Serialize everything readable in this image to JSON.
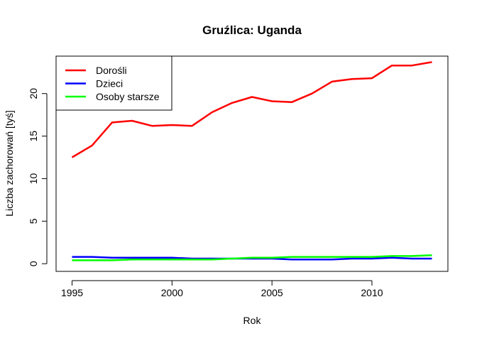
{
  "chart_data": {
    "type": "line",
    "title": "Gruźlica: Uganda",
    "xlabel": "Rok",
    "ylabel": "Liczba zachorowań [tyś]",
    "xlim": [
      1994.2,
      2013.8
    ],
    "ylim": [
      -0.9,
      24.4
    ],
    "xticks": [
      1995,
      2000,
      2005,
      2010
    ],
    "yticks": [
      0,
      5,
      10,
      15,
      20
    ],
    "grid": false,
    "legend_position": "top-left",
    "x": [
      1995,
      1996,
      1997,
      1998,
      1999,
      2000,
      2001,
      2002,
      2003,
      2004,
      2005,
      2006,
      2007,
      2008,
      2009,
      2010,
      2011,
      2012,
      2013
    ],
    "series": [
      {
        "name": "Dorośli",
        "color": "#ff0000",
        "values": [
          12.5,
          13.9,
          16.6,
          16.8,
          16.2,
          16.3,
          16.2,
          17.8,
          18.9,
          19.6,
          19.1,
          19.0,
          20.0,
          21.4,
          21.7,
          21.8,
          23.3,
          23.3,
          23.7
        ]
      },
      {
        "name": "Dzieci",
        "color": "#0000ff",
        "values": [
          0.8,
          0.8,
          0.7,
          0.7,
          0.7,
          0.7,
          0.6,
          0.6,
          0.6,
          0.6,
          0.6,
          0.5,
          0.5,
          0.5,
          0.6,
          0.6,
          0.7,
          0.6,
          0.6
        ]
      },
      {
        "name": "Osoby starsze",
        "color": "#00ff00",
        "values": [
          0.4,
          0.4,
          0.4,
          0.5,
          0.5,
          0.5,
          0.5,
          0.5,
          0.6,
          0.7,
          0.7,
          0.8,
          0.8,
          0.8,
          0.8,
          0.8,
          0.9,
          0.9,
          1.0
        ]
      }
    ]
  }
}
